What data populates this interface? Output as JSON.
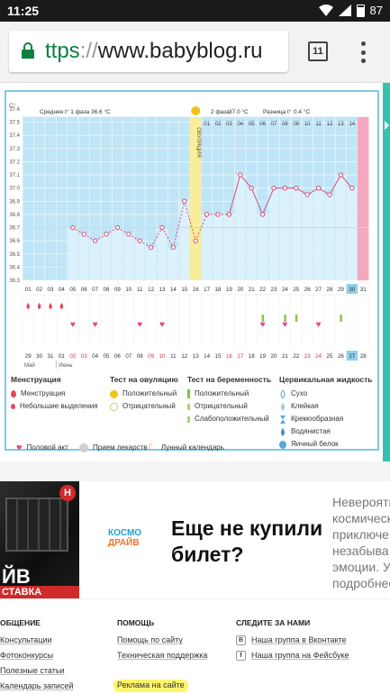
{
  "status": {
    "time": "11:25",
    "battery": "87"
  },
  "browser": {
    "url_scheme": "ttps",
    "url_sep": "://",
    "url_host": "www.babyblog.ru",
    "tab_count": "11"
  },
  "chart_data": {
    "type": "line",
    "title": "",
    "y_unit_label": "C°",
    "ylim": [
      36.3,
      37.6
    ],
    "y_ticks": [
      "37.6",
      "37.5",
      "37.4",
      "37.3",
      "37.2",
      "37.1",
      "37.0",
      "36.9",
      "36.8",
      "36.7",
      "36.6",
      "36.5",
      "36.4",
      "36.3"
    ],
    "phase1_label": "Средняя t° 1 фаза",
    "phase1_value": "36.6 °C",
    "phase2_label": "2 фаза",
    "phase2_value": "37.0 °C",
    "diff_label": "Разница t°",
    "diff_value": "0.4 °C",
    "ovulation_label": "ОВУЛЯЦИЯ",
    "ovulation_day_index": 15,
    "baseline": 36.7,
    "cycle_days": [
      "01",
      "02",
      "03",
      "04",
      "05",
      "06",
      "07",
      "08",
      "09",
      "10",
      "11",
      "12",
      "13",
      "14",
      "15",
      "16",
      "17",
      "18",
      "19",
      "20",
      "21",
      "22",
      "23",
      "24",
      "25",
      "26",
      "27",
      "28",
      "29",
      "30",
      "31"
    ],
    "phase2_days": [
      "01",
      "02",
      "03",
      "04",
      "05",
      "06",
      "07",
      "08",
      "09",
      "10",
      "11",
      "12",
      "13",
      "14",
      "15"
    ],
    "temperatures": [
      null,
      null,
      null,
      null,
      36.7,
      36.65,
      36.6,
      36.65,
      36.7,
      36.65,
      36.6,
      36.55,
      36.7,
      36.55,
      36.9,
      36.6,
      36.8,
      36.8,
      36.8,
      37.1,
      37.0,
      36.8,
      37.0,
      37.0,
      37.0,
      36.95,
      37.0,
      36.95,
      37.1,
      37.0,
      null
    ],
    "dates": [
      "29",
      "30",
      "31",
      "01",
      "02",
      "03",
      "04",
      "05",
      "06",
      "07",
      "08",
      "09",
      "10",
      "11",
      "12",
      "13",
      "14",
      "15",
      "16",
      "17",
      "18",
      "19",
      "20",
      "21",
      "22",
      "23",
      "24",
      "25",
      "26",
      "27",
      "28"
    ],
    "red_dates": [
      "02",
      "03",
      "09",
      "10",
      "16",
      "17",
      "23",
      "24"
    ],
    "month_prev": "Май",
    "month_next": "Июнь",
    "menstruation_days": [
      "01",
      "02",
      "03",
      "04"
    ],
    "sex_days": [
      "05",
      "07",
      "11",
      "13",
      "22",
      "24",
      "27"
    ],
    "test_days": [
      "22",
      "24",
      "25",
      "29"
    ]
  },
  "legend": {
    "menstruation": {
      "header": "Менструация",
      "items": [
        "Менструация",
        "Небольшие выделения"
      ]
    },
    "ovulation_test": {
      "header": "Тест на овуляцию",
      "items": [
        "Положительный",
        "Отрицательный"
      ]
    },
    "pregnancy_test": {
      "header": "Тест на беременность",
      "items": [
        "Положительный",
        "Отрицательный",
        "Слабоположительный"
      ]
    },
    "cervical": {
      "header": "Цервикальная жидкость",
      "items": [
        "Сухо",
        "Клейкая",
        "Кремообразная",
        "Водянистая",
        "Яичный белок"
      ]
    },
    "extra": [
      "Половой акт",
      "Прием лекарств",
      "Лунный календарь"
    ]
  },
  "ad": {
    "photo_line1": "ЙВ",
    "photo_line2": "СТАВКА",
    "badge": "Н",
    "logo_line1": "КОСМО",
    "logo_line2": "ДРАЙВ",
    "title": "Еще не купили билет?",
    "text_lines": [
      "Невероятн",
      "космическ",
      "приключе",
      "незабыва",
      "эмоции. У",
      "подробнее"
    ]
  },
  "footer": {
    "col1": {
      "header": "ОБЩЕНИЕ",
      "links": [
        "Консультации",
        "Фотоконкурсы",
        "Полезные статьи",
        "Календарь записей"
      ]
    },
    "col2": {
      "header": "ПОМОЩЬ",
      "links": [
        "Помощь по сайту",
        "Техническая поддержка",
        "Реклама на сайте"
      ]
    },
    "col3": {
      "header": "СЛЕДИТЕ ЗА НАМИ",
      "links": [
        "Наша группа в Вконтакте",
        "Наша группа на Фейсбуке"
      ],
      "icons": [
        "В",
        "f"
      ]
    }
  }
}
